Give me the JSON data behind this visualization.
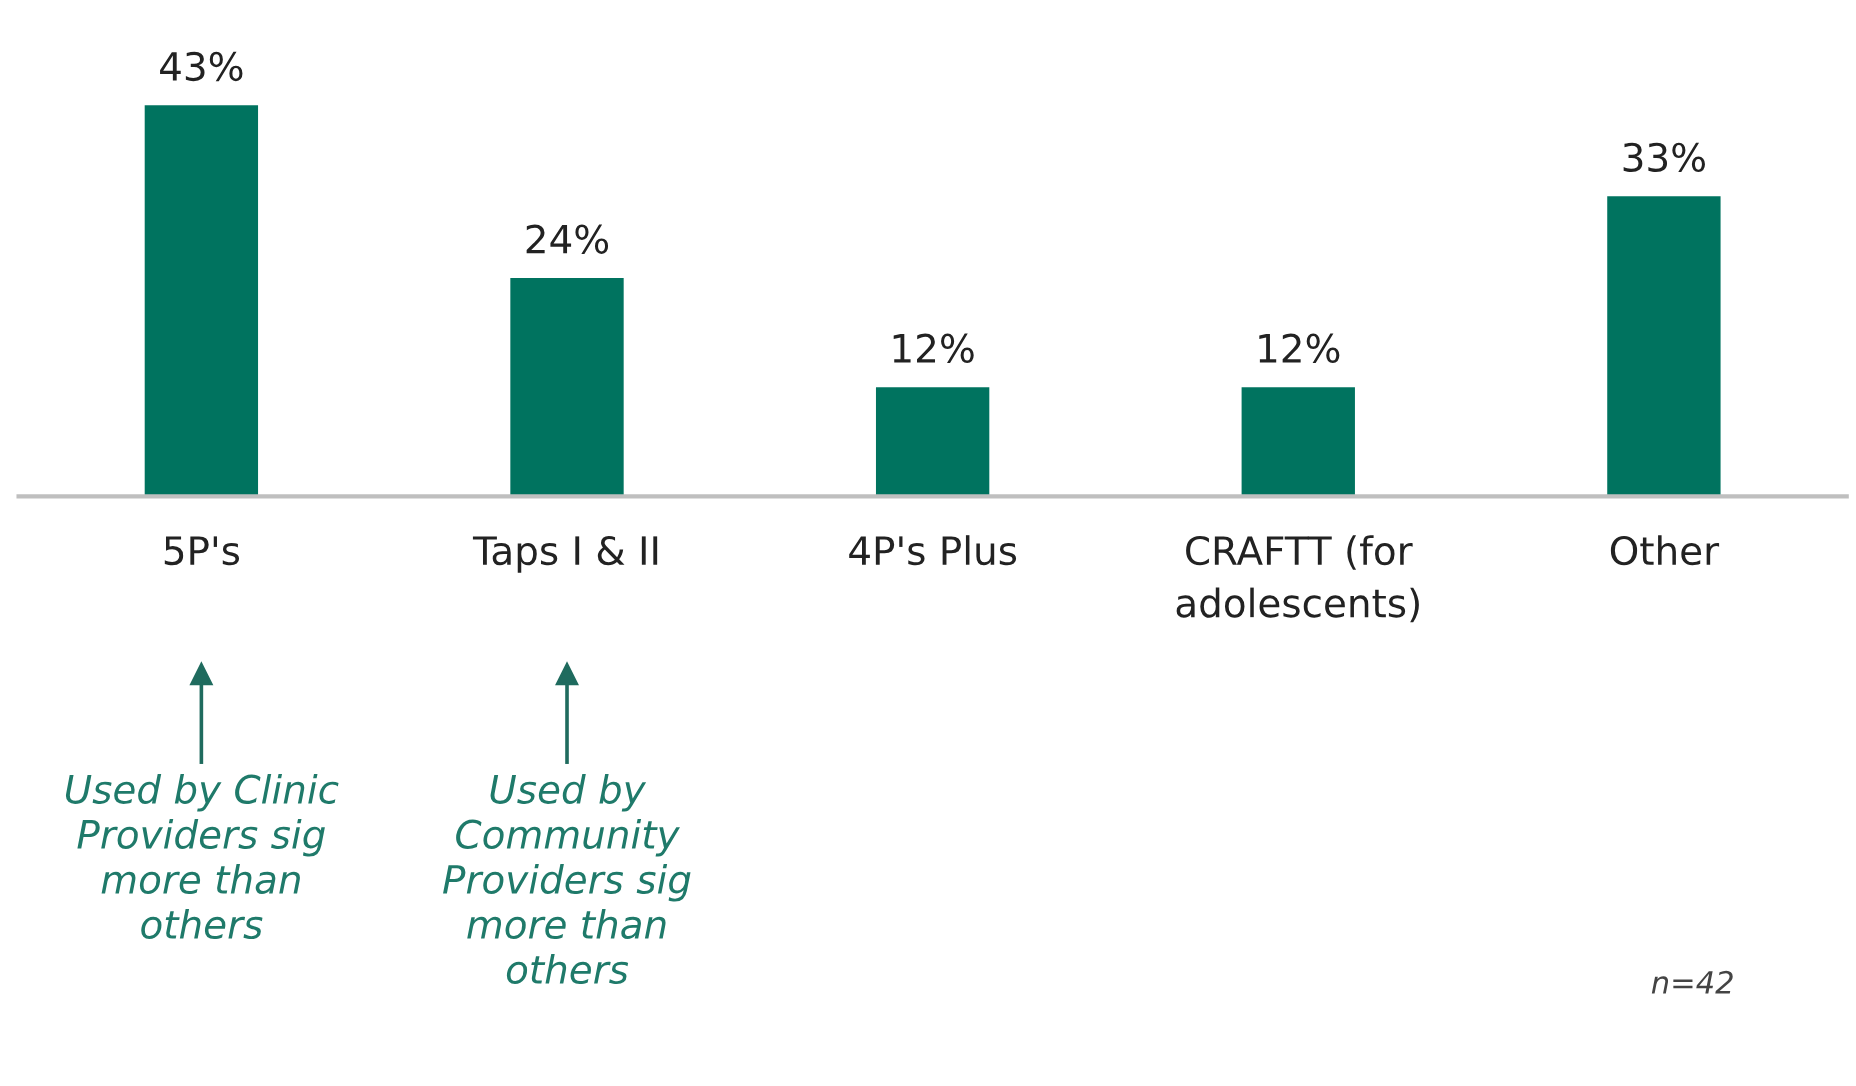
{
  "chart_data": {
    "type": "bar",
    "categories": [
      "5P's",
      "Taps I & II",
      "4P's Plus",
      "CRAFTT (for\nadolescents)",
      "Other"
    ],
    "values": [
      43,
      24,
      12,
      12,
      33
    ],
    "value_labels": [
      "43%",
      "24%",
      "12%",
      "12%",
      "33%"
    ],
    "color": "#00735f",
    "grid": false,
    "legend": false,
    "annotations": [
      {
        "text": "Used by Clinic\nProviders sig\nmore than\nothers",
        "x": "5P's"
      },
      {
        "text": "Used by\nCommunity\nProviders sig\nmore than\nothers",
        "x": "Taps I & II"
      },
      "n=42"
    ]
  }
}
